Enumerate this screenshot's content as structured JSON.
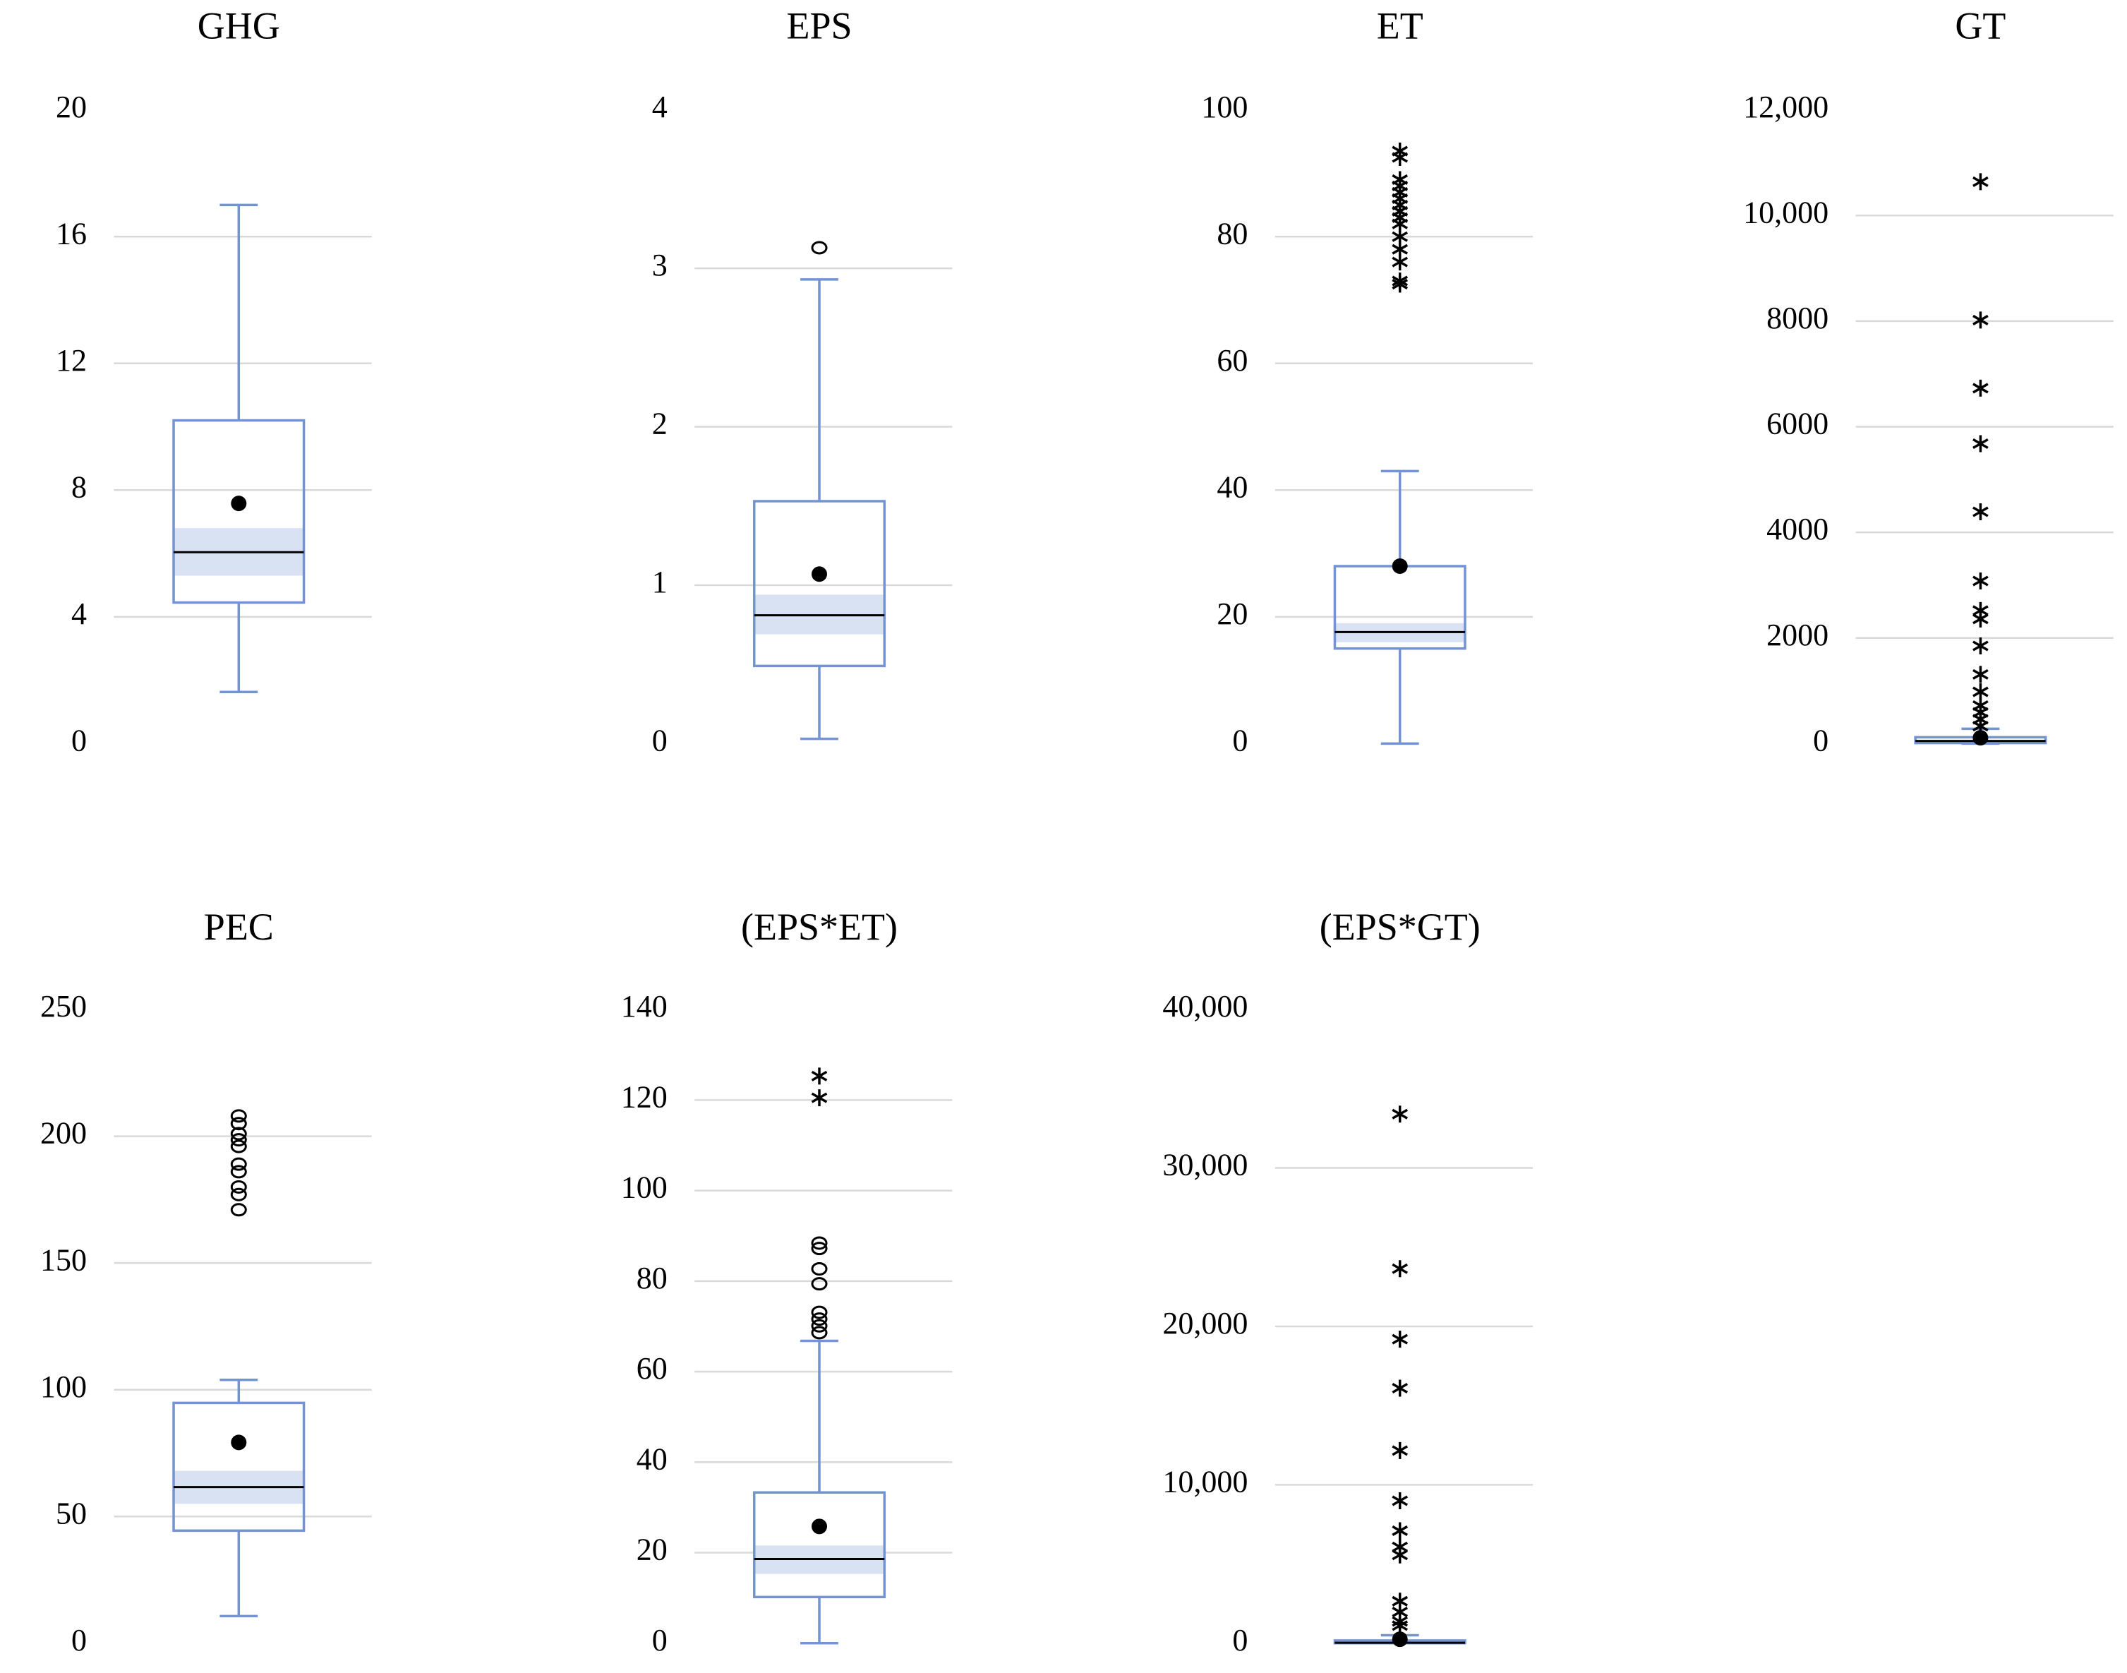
{
  "chart_data": [
    {
      "type": "box",
      "title": "GHG",
      "color": "#7393d3",
      "band_color": "#d9e2f3",
      "grid": true,
      "ylim": [
        0,
        20
      ],
      "yticks": [
        0,
        4,
        8,
        12,
        16,
        20
      ],
      "whisker_low": 1.63,
      "q1": 4.45,
      "median": 6.04,
      "q3": 10.2,
      "whisker_high": 17.0,
      "mean": 7.58,
      "median_ci": [
        5.3,
        6.8
      ],
      "outliers_circle": [],
      "outliers_star": []
    },
    {
      "type": "box",
      "title": "EPS",
      "color": "#7393d3",
      "band_color": "#d9e2f3",
      "grid": true,
      "ylim": [
        0,
        4
      ],
      "yticks": [
        0,
        1,
        2,
        3,
        4
      ],
      "whisker_low": 0.03,
      "q1": 0.49,
      "median": 0.81,
      "q3": 1.53,
      "whisker_high": 2.93,
      "mean": 1.07,
      "median_ci": [
        0.69,
        0.94
      ],
      "outliers_circle": [
        3.13
      ],
      "outliers_star": []
    },
    {
      "type": "box",
      "title": "ET",
      "color": "#7393d3",
      "band_color": "#d9e2f3",
      "grid": true,
      "ylim": [
        0,
        100
      ],
      "yticks": [
        0,
        20,
        40,
        60,
        80,
        100
      ],
      "whisker_low": 0,
      "q1": 15,
      "median": 17.6,
      "q3": 28,
      "whisker_high": 43,
      "mean": 28,
      "median_ci": [
        16,
        19
      ],
      "outliers_circle": [],
      "outliers_star": [
        93.5,
        92.5,
        89,
        88,
        87,
        86,
        85,
        84,
        83,
        82,
        80,
        78,
        76,
        73,
        72.5
      ]
    },
    {
      "type": "box",
      "title": "GT",
      "color": "#7393d3",
      "band_color": "#d9e2f3",
      "grid": true,
      "ylim": [
        0,
        12000
      ],
      "yticks": [
        0,
        2000,
        4000,
        6000,
        8000,
        {
          "value": 10000,
          "label": "10,000"
        },
        {
          "value": 12000,
          "label": "12,000"
        }
      ],
      "whisker_low": 0,
      "q1": 10,
      "median": 50,
      "q3": 120,
      "whisker_high": 280,
      "mean": 110,
      "median_ci": [
        40,
        60
      ],
      "outliers_circle": [],
      "outliers_star": [
        10640,
        8020,
        6730,
        5680,
        4390,
        3080,
        2520,
        2360,
        1850,
        1310,
        980,
        720,
        590,
        460,
        330
      ]
    },
    {
      "type": "box",
      "title": "PEC",
      "color": "#7393d3",
      "band_color": "#d9e2f3",
      "grid": true,
      "ylim": [
        0,
        250
      ],
      "yticks": [
        0,
        50,
        100,
        150,
        200,
        250
      ],
      "whisker_low": 10.7,
      "q1": 44.4,
      "median": 61.6,
      "q3": 94.8,
      "whisker_high": 103.9,
      "mean": 79.2,
      "median_ci": [
        55,
        68
      ],
      "outliers_circle": [
        208,
        205,
        201,
        198.6,
        196,
        189,
        186,
        180,
        177,
        171
      ],
      "outliers_star": []
    },
    {
      "type": "box",
      "title": "(EPS*ET)",
      "color": "#7393d3",
      "band_color": "#d9e2f3",
      "grid": true,
      "ylim": [
        0,
        140
      ],
      "yticks": [
        0,
        20,
        40,
        60,
        80,
        100,
        120,
        140
      ],
      "whisker_low": 0,
      "q1": 10.2,
      "median": 18.6,
      "q3": 33.3,
      "whisker_high": 66.8,
      "mean": 25.8,
      "median_ci": [
        15.3,
        21.6
      ],
      "outliers_circle": [
        88.4,
        87.2,
        82.7,
        79.4,
        73.1,
        71.6,
        70.1,
        68.6
      ],
      "outliers_star": [
        125.3,
        120.5
      ]
    },
    {
      "type": "box",
      "title": "(EPS*GT)",
      "color": "#7393d3",
      "band_color": "#d9e2f3",
      "grid": true,
      "ylim": [
        0,
        40000
      ],
      "yticks": [
        0,
        {
          "value": 10000,
          "label": "10,000"
        },
        {
          "value": 20000,
          "label": "20,000"
        },
        {
          "value": 30000,
          "label": "30,000"
        },
        {
          "value": 40000,
          "label": "40,000"
        }
      ],
      "whisker_low": 0,
      "q1": 0,
      "median": 30,
      "q3": 170,
      "whisker_high": 500,
      "mean": 250,
      "median_ci": [
        10,
        60
      ],
      "outliers_circle": [],
      "outliers_star": [
        33400,
        23640,
        19190,
        16100,
        12160,
        8990,
        7100,
        6080,
        5570,
        2650,
        1970,
        1370,
        1110
      ]
    }
  ]
}
